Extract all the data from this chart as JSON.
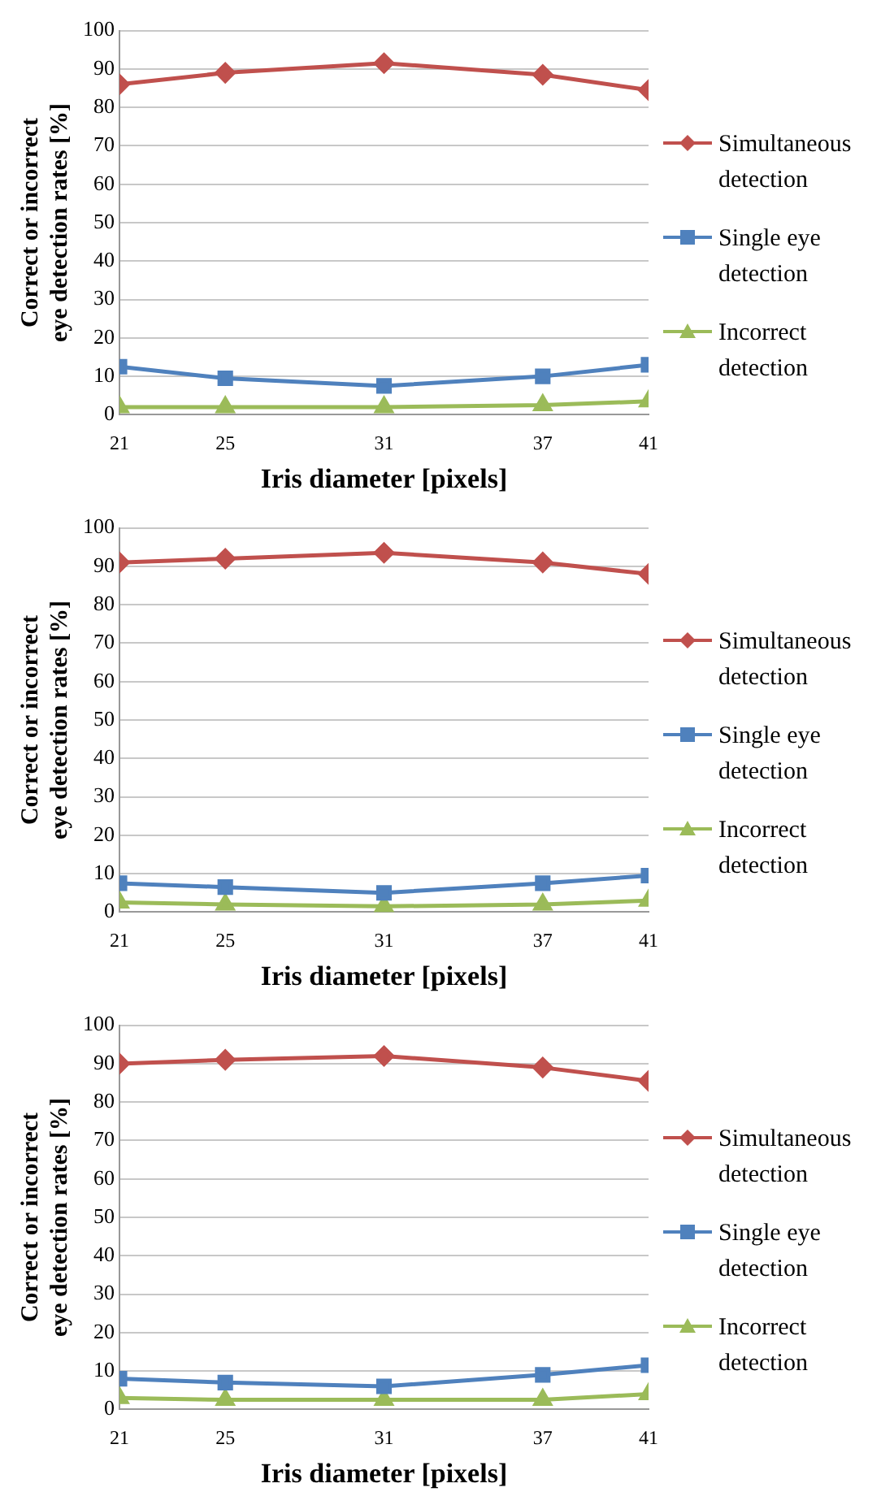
{
  "chart_data": [
    {
      "type": "line",
      "xlabel": "Iris diameter [pixels]",
      "ylabel": "Correct or incorrect eye detection rates [%]",
      "x": [
        21,
        25,
        31,
        37,
        41
      ],
      "xlim": [
        21,
        41
      ],
      "xticks": [
        21,
        25,
        31,
        37,
        41
      ],
      "ylim": [
        0,
        100
      ],
      "yticks": [
        0,
        10,
        20,
        30,
        40,
        50,
        60,
        70,
        80,
        90,
        100
      ],
      "grid": "y",
      "legend": "right",
      "line_style": "solid",
      "series": [
        {
          "name": "Simultaneous detection",
          "color": "#c0504d",
          "marker": "diamond",
          "values": [
            86,
            89,
            91.5,
            88.5,
            84.5
          ]
        },
        {
          "name": "Single eye detection",
          "color": "#4f81bd",
          "marker": "square",
          "values": [
            12.5,
            9.5,
            7.5,
            10,
            13
          ]
        },
        {
          "name": "Incorrect detection",
          "color": "#9bbb59",
          "marker": "triangle",
          "values": [
            2,
            2,
            2,
            2.5,
            3.5
          ]
        }
      ]
    },
    {
      "type": "line",
      "xlabel": "Iris diameter [pixels]",
      "ylabel": "Correct or incorrect eye detection rates [%]",
      "x": [
        21,
        25,
        31,
        37,
        41
      ],
      "xlim": [
        21,
        41
      ],
      "xticks": [
        21,
        25,
        31,
        37,
        41
      ],
      "ylim": [
        0,
        100
      ],
      "yticks": [
        0,
        10,
        20,
        30,
        40,
        50,
        60,
        70,
        80,
        90,
        100
      ],
      "grid": "y",
      "legend": "right",
      "line_style": "solid",
      "series": [
        {
          "name": "Simultaneous detection",
          "color": "#c0504d",
          "marker": "diamond",
          "values": [
            91,
            92,
            93.5,
            91,
            88
          ]
        },
        {
          "name": "Single eye detection",
          "color": "#4f81bd",
          "marker": "square",
          "values": [
            7.5,
            6.5,
            5,
            7.5,
            9.5
          ]
        },
        {
          "name": "Incorrect detection",
          "color": "#9bbb59",
          "marker": "triangle",
          "values": [
            2.5,
            2,
            1.5,
            2,
            3
          ]
        }
      ]
    },
    {
      "type": "line",
      "xlabel": "Iris diameter [pixels]",
      "ylabel": "Correct or incorrect eye detection rates [%]",
      "x": [
        21,
        25,
        31,
        37,
        41
      ],
      "xlim": [
        21,
        41
      ],
      "xticks": [
        21,
        25,
        31,
        37,
        41
      ],
      "ylim": [
        0,
        100
      ],
      "yticks": [
        0,
        10,
        20,
        30,
        40,
        50,
        60,
        70,
        80,
        90,
        100
      ],
      "grid": "y",
      "legend": "right",
      "line_style": "solid",
      "series": [
        {
          "name": "Simultaneous detection",
          "color": "#c0504d",
          "marker": "diamond",
          "values": [
            90,
            91,
            92,
            89,
            85.5
          ]
        },
        {
          "name": "Single eye detection",
          "color": "#4f81bd",
          "marker": "square",
          "values": [
            8,
            7,
            6,
            9,
            11.5
          ]
        },
        {
          "name": "Incorrect detection",
          "color": "#9bbb59",
          "marker": "triangle",
          "values": [
            3,
            2.5,
            2.5,
            2.5,
            4
          ]
        }
      ]
    }
  ]
}
